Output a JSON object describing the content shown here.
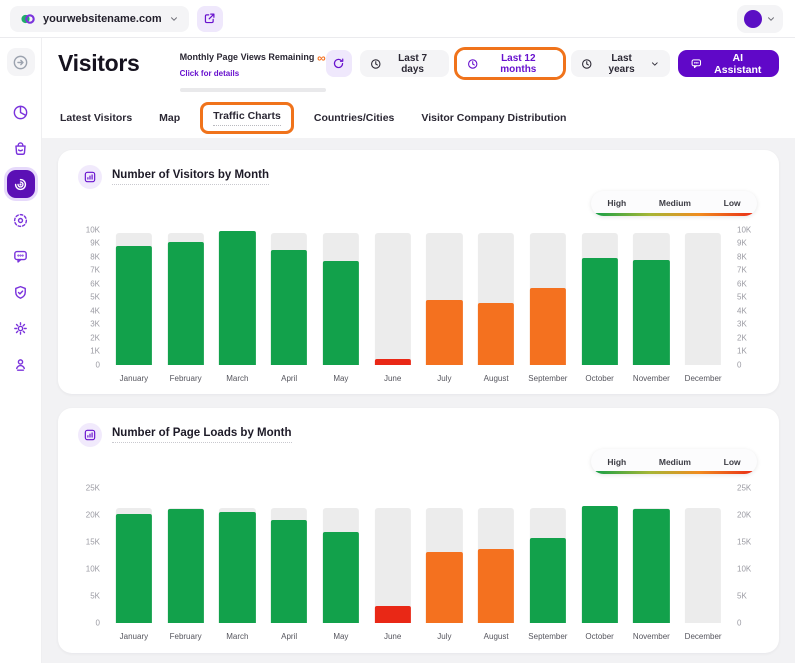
{
  "topbar": {
    "website_selector": {
      "label": "yourwebsitename.com",
      "logo_icon": "twipla-logo-icon",
      "chevron_icon": "chevron-down-icon"
    },
    "open_button_icon": "external-link-icon",
    "account": {
      "avatar": "avatar",
      "chevron_icon": "chevron-down-icon"
    }
  },
  "sidebar": {
    "items": [
      {
        "name": "expand",
        "icon": "arrow-right-circle-icon",
        "active": false
      },
      {
        "name": "dashboard",
        "icon": "pie-chart-icon",
        "active": false
      },
      {
        "name": "shop",
        "icon": "bag-icon",
        "active": false
      },
      {
        "name": "visitors",
        "icon": "radar-icon",
        "active": true
      },
      {
        "name": "behavior",
        "icon": "target-icon",
        "active": false
      },
      {
        "name": "communication",
        "icon": "chat-bubble-icon",
        "active": false
      },
      {
        "name": "privacy",
        "icon": "shield-check-icon",
        "active": false
      },
      {
        "name": "settings",
        "icon": "gear-icon",
        "active": false
      },
      {
        "name": "account",
        "icon": "person-pin-icon",
        "active": false
      }
    ]
  },
  "header": {
    "title": "Visitors",
    "quota": {
      "label": "Monthly Page Views Remaining",
      "link": "Click for details",
      "value": "∞"
    },
    "refresh_icon": "refresh-icon",
    "time_filters": [
      {
        "label": "Last 7 days",
        "icon": "clock-icon",
        "active": false,
        "annotated": false,
        "chevron": false
      },
      {
        "label": "Last 12 months",
        "icon": "clock-icon",
        "active": true,
        "annotated": true,
        "chevron": false
      },
      {
        "label": "Last years",
        "icon": "clock-icon",
        "active": false,
        "annotated": false,
        "chevron": true
      }
    ],
    "ai_button": {
      "label": "AI Assistant",
      "icon": "chat-bubble-icon"
    }
  },
  "tabs": [
    {
      "label": "Latest Visitors",
      "active": false,
      "annotated": false
    },
    {
      "label": "Map",
      "active": false,
      "annotated": false
    },
    {
      "label": "Traffic Charts",
      "active": true,
      "annotated": true
    },
    {
      "label": "Countries/Cities",
      "active": false,
      "annotated": false
    },
    {
      "label": "Visitor Company Distribution",
      "active": false,
      "annotated": false
    }
  ],
  "colors": {
    "brand_purple": "#6812CE",
    "bar_high": "#12A14B",
    "bar_medium": "#F4711F",
    "bar_low": "#E92816",
    "bar_track": "#ECECEC",
    "annotation_orange": "#F0731B"
  },
  "chart_data": [
    {
      "type": "bar",
      "title": "Number of Visitors by Month",
      "icon": "bar-chart-icon",
      "categories": [
        "January",
        "February",
        "March",
        "April",
        "May",
        "June",
        "July",
        "August",
        "September",
        "October",
        "November",
        "December"
      ],
      "values": [
        8800,
        9100,
        9900,
        8500,
        7700,
        400,
        4800,
        4600,
        5700,
        7900,
        7800,
        0
      ],
      "levels": [
        "high",
        "high",
        "high",
        "high",
        "high",
        "low",
        "medium",
        "medium",
        "medium",
        "high",
        "high",
        "none"
      ],
      "track_value": 9800,
      "ylim": [
        0,
        10000
      ],
      "ytick_labels": [
        "10K",
        "9K",
        "8K",
        "7K",
        "6K",
        "5K",
        "4K",
        "3K",
        "2K",
        "1K",
        "0"
      ],
      "xlabel": "",
      "ylabel": "",
      "grid": false,
      "legend": {
        "labels": [
          "High",
          "Medium",
          "Low"
        ],
        "position": "top-right",
        "gradient": [
          "#0D9E47",
          "#A5B636 35%",
          "#F08C1F 65%",
          "#E92816"
        ]
      }
    },
    {
      "type": "bar",
      "title": "Number of Page Loads by Month",
      "icon": "bar-chart-icon",
      "categories": [
        "January",
        "February",
        "March",
        "April",
        "May",
        "June",
        "July",
        "August",
        "September",
        "October",
        "November",
        "December"
      ],
      "values": [
        20200,
        21200,
        20600,
        19200,
        17000,
        3200,
        13200,
        13800,
        15800,
        21700,
        21200,
        0
      ],
      "levels": [
        "high",
        "high",
        "high",
        "high",
        "high",
        "low",
        "medium",
        "medium",
        "high",
        "high",
        "high",
        "none"
      ],
      "track_value": 21400,
      "ylim": [
        0,
        25000
      ],
      "ytick_labels": [
        "25K",
        "20K",
        "15K",
        "10K",
        "5K",
        "0"
      ],
      "xlabel": "",
      "ylabel": "",
      "grid": false,
      "legend": {
        "labels": [
          "High",
          "Medium",
          "Low"
        ],
        "position": "top-right",
        "gradient": [
          "#0D9E47",
          "#A5B636 35%",
          "#F08C1F 65%",
          "#E92816"
        ]
      }
    }
  ]
}
